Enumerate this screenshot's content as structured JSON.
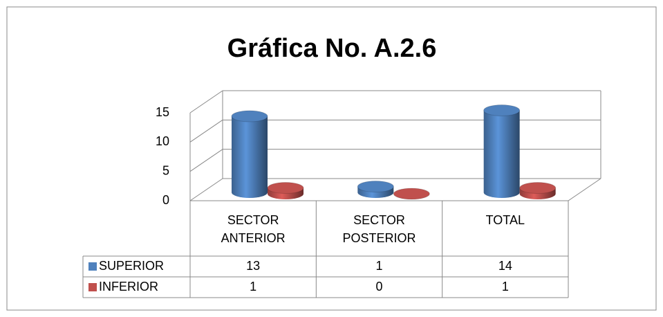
{
  "chart_data": {
    "type": "bar3d-cylinder",
    "title": "Gráfica  No. A.2.6",
    "categories": [
      "SECTOR ANTERIOR",
      "SECTOR POSTERIOR",
      "TOTAL"
    ],
    "series": [
      {
        "name": "SUPERIOR",
        "color": "#4f81bd",
        "values": [
          13,
          1,
          14
        ]
      },
      {
        "name": "INFERIOR",
        "color": "#c0504d",
        "values": [
          1,
          0,
          1
        ]
      }
    ],
    "ylim": [
      0,
      15
    ],
    "yticks": [
      0,
      5,
      10,
      15
    ],
    "grid": true,
    "data_table": true
  }
}
